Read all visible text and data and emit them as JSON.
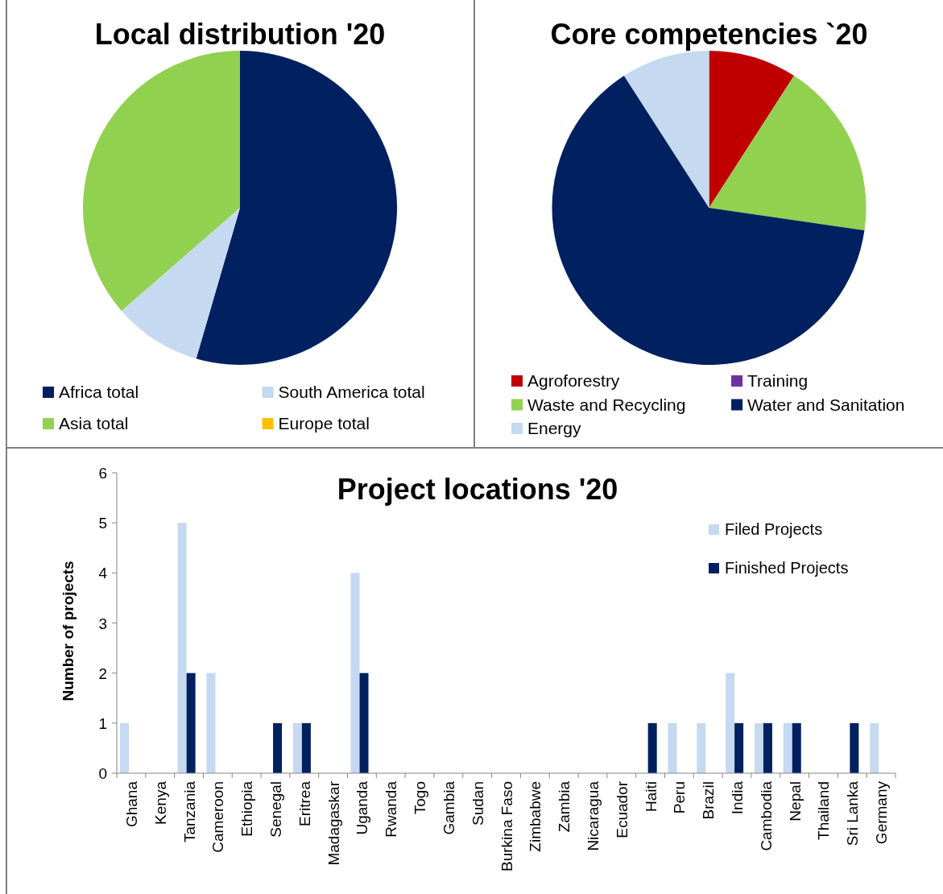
{
  "chart_data": [
    {
      "type": "pie",
      "title": "Local distribution '20",
      "categories": [
        "Africa total",
        "South America total",
        "Asia total",
        "Europe total"
      ],
      "values": [
        54.5,
        9.1,
        36.4,
        0
      ],
      "colors": [
        "#002060",
        "#c5d9f1",
        "#92d050",
        "#ffc000"
      ],
      "legend": "bottom"
    },
    {
      "type": "pie",
      "title": "Core competencies `20",
      "categories": [
        "Agroforestry",
        "Training",
        "Waste and Recycling",
        "Water and Sanitation",
        "Energy"
      ],
      "values": [
        9.1,
        0,
        18.2,
        63.6,
        9.1
      ],
      "colors": [
        "#c00000",
        "#7030a0",
        "#92d050",
        "#002060",
        "#c5d9f1"
      ],
      "legend": "bottom"
    },
    {
      "type": "bar",
      "title": "Project locations '20",
      "ylabel": "Number of projects",
      "categories": [
        "Ghana",
        "Kenya",
        "Tanzania",
        "Cameroon",
        "Ethiopia",
        "Senegal",
        "Eritrea",
        "Madagaskar",
        "Uganda",
        "Rwanda",
        "Togo",
        "Gambia",
        "Sudan",
        "Burkina Faso",
        "Zimbabwe",
        "Zambia",
        "Nicaragua",
        "Ecuador",
        "Haiti",
        "Peru",
        "Brazil",
        "India",
        "Cambodia",
        "Nepal",
        "Thailand",
        "Sri Lanka",
        "Germany"
      ],
      "series": [
        {
          "name": "Filed Projects",
          "color": "#c5d9f1",
          "values": [
            1,
            0,
            5,
            2,
            0,
            0,
            1,
            0,
            4,
            0,
            0,
            0,
            0,
            0,
            0,
            0,
            0,
            0,
            0,
            1,
            1,
            2,
            1,
            1,
            0,
            0,
            1
          ]
        },
        {
          "name": "Finished Projects",
          "color": "#002060",
          "values": [
            0,
            0,
            2,
            0,
            0,
            1,
            1,
            0,
            2,
            0,
            0,
            0,
            0,
            0,
            0,
            0,
            0,
            0,
            1,
            0,
            0,
            1,
            1,
            1,
            0,
            1,
            0
          ]
        }
      ],
      "ylim": [
        0,
        6
      ],
      "yticks": [
        0,
        1,
        2,
        3,
        4,
        5,
        6
      ],
      "grid": false,
      "legend": "top right"
    }
  ]
}
